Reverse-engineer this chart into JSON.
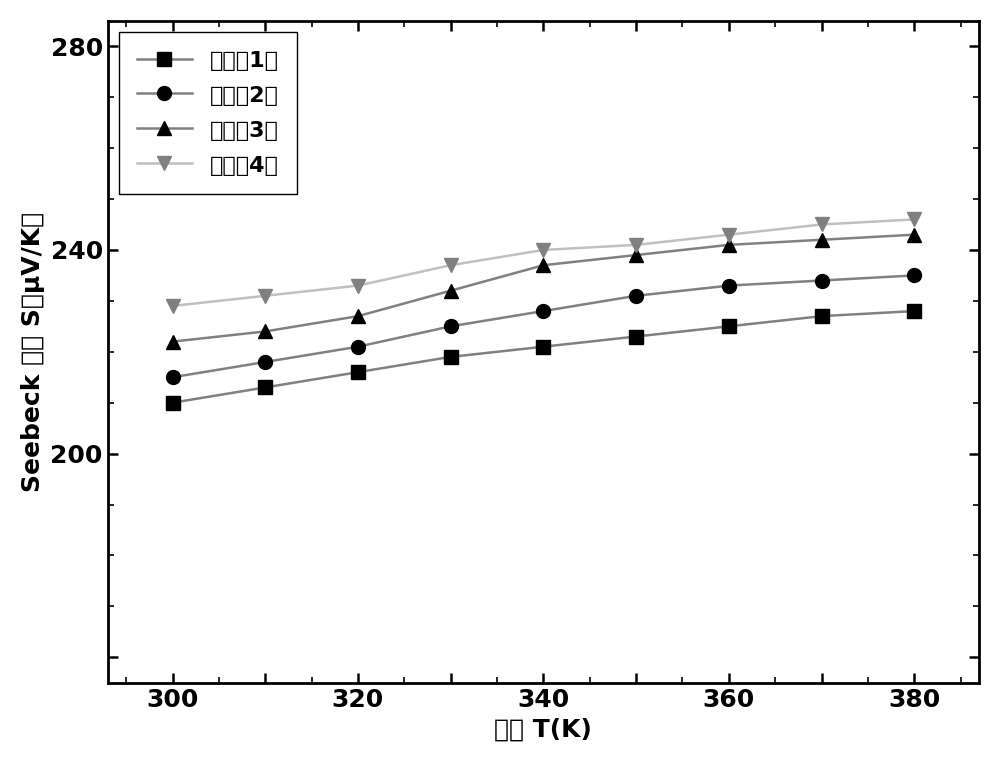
{
  "x": [
    300,
    310,
    320,
    330,
    340,
    350,
    360,
    370,
    380
  ],
  "series": [
    {
      "label": "实施例1：",
      "y": [
        210,
        213,
        216,
        219,
        221,
        223,
        225,
        227,
        228
      ],
      "marker": "s",
      "linecolor": "#808080",
      "markercolor": "#000000"
    },
    {
      "label": "实施例2：",
      "y": [
        215,
        218,
        221,
        225,
        228,
        231,
        233,
        234,
        235
      ],
      "marker": "o",
      "linecolor": "#808080",
      "markercolor": "#000000"
    },
    {
      "label": "实施例3：",
      "y": [
        222,
        224,
        227,
        232,
        237,
        239,
        241,
        242,
        243
      ],
      "marker": "^",
      "linecolor": "#808080",
      "markercolor": "#000000"
    },
    {
      "label": "实施例4：",
      "y": [
        229,
        231,
        233,
        237,
        240,
        241,
        243,
        245,
        246
      ],
      "marker": "v",
      "linecolor": "#c0c0c0",
      "markercolor": "#808080"
    }
  ],
  "xlabel": "温度 T(K)",
  "ylabel": "Seebeck 系数 S（μV/K）",
  "xlim": [
    293,
    387
  ],
  "ylim": [
    155,
    285
  ],
  "yticks": [
    160,
    200,
    240,
    280
  ],
  "xticks": [
    300,
    310,
    320,
    330,
    340,
    350,
    360,
    370,
    380
  ],
  "xtick_labels": [
    "300",
    "",
    "320",
    "",
    "340",
    "",
    "360",
    "",
    "380"
  ],
  "ytick_labels": [
    "",
    "200",
    "240",
    "280"
  ],
  "label_fontsize": 18,
  "tick_fontsize": 18,
  "legend_fontsize": 16,
  "background_color": "#ffffff"
}
